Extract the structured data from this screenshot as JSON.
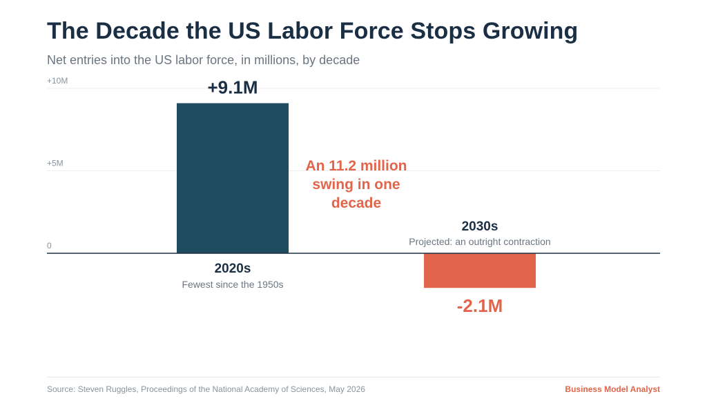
{
  "title": "The Decade the US Labor Force Stops Growing",
  "subtitle": "Net entries into the US labor force, in millions, by decade",
  "colors": {
    "title": "#1b2f44",
    "bar_positive": "#1d4c5e",
    "bar_negative": "#e0654a",
    "accent": "#e0654a",
    "muted": "#6b7580",
    "gridline": "#eceef0",
    "baseline": "#1b2f44"
  },
  "chart_data": {
    "type": "bar",
    "unit": "M",
    "ylim": [
      -5,
      10
    ],
    "yticks": [
      {
        "value": 10,
        "label": "+10M"
      },
      {
        "value": 5,
        "label": "+5M"
      },
      {
        "value": 0,
        "label": "0"
      }
    ],
    "grid": true,
    "legend": "none",
    "bars": [
      {
        "category": "2020s",
        "value": 9.1,
        "value_label": "+9.1M",
        "note": "Fewest since the 1950s",
        "color": "#1d4c5e"
      },
      {
        "category": "2030s",
        "value": -2.1,
        "value_label": "-2.1M",
        "note": "Projected: an outright contraction",
        "color": "#e0654a"
      }
    ],
    "annotation": {
      "lines": [
        "An 11.2 million",
        "swing in one",
        "decade"
      ],
      "color": "#e0654a"
    }
  },
  "footer": {
    "source": "Source: Steven Ruggles, Proceedings of the National Academy of Sciences, May 2026",
    "brand": "Business Model Analyst"
  }
}
